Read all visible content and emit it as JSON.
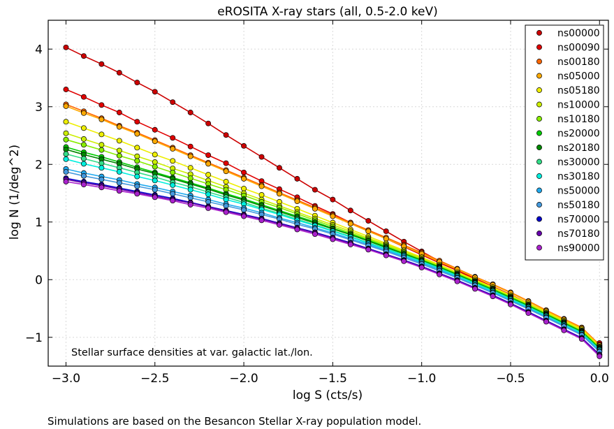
{
  "chart_data": {
    "type": "line",
    "title": "eROSITA X-ray stars (all, 0.5-2.0 keV)",
    "xlabel": "log S (cts/s)",
    "ylabel": "log N (1/deg^2)",
    "xlim": [
      -3.1,
      0.05
    ],
    "ylim": [
      -1.5,
      4.5
    ],
    "xticks": [
      -3.0,
      -2.5,
      -2.0,
      -1.5,
      -1.0,
      -0.5,
      0.0
    ],
    "xtick_labels": [
      "−3.0",
      "−2.5",
      "−2.0",
      "−1.5",
      "−1.0",
      "−0.5",
      "0.0"
    ],
    "yticks": [
      -1,
      0,
      1,
      2,
      3,
      4
    ],
    "ytick_labels": [
      "−1",
      "0",
      "1",
      "2",
      "3",
      "4"
    ],
    "grid": true,
    "legend_position": "top-right",
    "annotation": "Stellar surface densities at var. galactic lat./lon.",
    "x": [
      -3.0,
      -2.9,
      -2.8,
      -2.7,
      -2.6,
      -2.5,
      -2.4,
      -2.3,
      -2.2,
      -2.1,
      -2.0,
      -1.9,
      -1.8,
      -1.7,
      -1.6,
      -1.5,
      -1.4,
      -1.3,
      -1.2,
      -1.1,
      -1.0,
      -0.9,
      -0.8,
      -0.7,
      -0.6,
      -0.5,
      -0.4,
      -0.3,
      -0.2,
      -0.1,
      0.0
    ],
    "series": [
      {
        "name": "ns00000",
        "color": "#cc0000",
        "values": [
          4.03,
          3.88,
          3.74,
          3.59,
          3.42,
          3.26,
          3.08,
          2.9,
          2.71,
          2.51,
          2.32,
          2.13,
          1.94,
          1.75,
          1.56,
          1.39,
          1.2,
          1.02,
          0.84,
          0.66,
          0.49,
          0.32,
          0.16,
          0.0,
          -0.17,
          -0.34,
          -0.49,
          -0.64,
          -0.8,
          -0.96,
          -1.1
        ]
      },
      {
        "name": "ns00090",
        "color": "#e00000",
        "values": [
          3.3,
          3.17,
          3.03,
          2.9,
          2.74,
          2.6,
          2.46,
          2.31,
          2.16,
          2.02,
          1.86,
          1.71,
          1.57,
          1.43,
          1.28,
          1.14,
          0.99,
          0.85,
          0.71,
          0.57,
          0.43,
          0.29,
          0.16,
          0.02,
          -0.12,
          -0.26,
          -0.41,
          -0.56,
          -0.71,
          -0.85,
          -1.15
        ]
      },
      {
        "name": "ns00180",
        "color": "#ff6600",
        "values": [
          3.04,
          2.92,
          2.8,
          2.67,
          2.55,
          2.42,
          2.29,
          2.16,
          2.03,
          1.9,
          1.77,
          1.64,
          1.51,
          1.38,
          1.25,
          1.12,
          0.99,
          0.86,
          0.73,
          0.6,
          0.47,
          0.33,
          0.19,
          0.05,
          -0.08,
          -0.22,
          -0.37,
          -0.53,
          -0.68,
          -0.83,
          -1.13
        ]
      },
      {
        "name": "ns05000",
        "color": "#ffaa00",
        "values": [
          3.01,
          2.89,
          2.78,
          2.65,
          2.53,
          2.4,
          2.27,
          2.14,
          2.01,
          1.88,
          1.75,
          1.62,
          1.49,
          1.36,
          1.23,
          1.1,
          0.97,
          0.84,
          0.71,
          0.58,
          0.45,
          0.31,
          0.18,
          0.04,
          -0.09,
          -0.23,
          -0.38,
          -0.54,
          -0.69,
          -0.84,
          -1.14
        ]
      },
      {
        "name": "ns05180",
        "color": "#eeee00",
        "values": [
          2.74,
          2.63,
          2.52,
          2.41,
          2.29,
          2.17,
          2.06,
          1.94,
          1.82,
          1.7,
          1.58,
          1.47,
          1.35,
          1.23,
          1.11,
          0.99,
          0.87,
          0.75,
          0.63,
          0.51,
          0.39,
          0.26,
          0.13,
          0.0,
          -0.13,
          -0.27,
          -0.41,
          -0.56,
          -0.71,
          -0.86,
          -1.16
        ]
      },
      {
        "name": "ns10000",
        "color": "#ccee00",
        "values": [
          2.54,
          2.44,
          2.34,
          2.24,
          2.14,
          2.04,
          1.93,
          1.83,
          1.72,
          1.61,
          1.5,
          1.39,
          1.28,
          1.17,
          1.06,
          0.95,
          0.84,
          0.72,
          0.61,
          0.49,
          0.37,
          0.24,
          0.11,
          -0.02,
          -0.15,
          -0.29,
          -0.43,
          -0.58,
          -0.73,
          -0.88,
          -1.17
        ]
      },
      {
        "name": "ns10180",
        "color": "#88ee00",
        "values": [
          2.43,
          2.34,
          2.25,
          2.15,
          2.06,
          1.96,
          1.86,
          1.76,
          1.66,
          1.56,
          1.46,
          1.35,
          1.25,
          1.14,
          1.03,
          0.92,
          0.81,
          0.7,
          0.59,
          0.47,
          0.35,
          0.23,
          0.1,
          -0.03,
          -0.16,
          -0.3,
          -0.44,
          -0.59,
          -0.74,
          -0.89,
          -1.18
        ]
      },
      {
        "name": "ns20000",
        "color": "#00cc00",
        "values": [
          2.3,
          2.21,
          2.13,
          2.04,
          1.95,
          1.86,
          1.77,
          1.68,
          1.59,
          1.49,
          1.4,
          1.3,
          1.2,
          1.1,
          1.0,
          0.89,
          0.79,
          0.68,
          0.57,
          0.45,
          0.34,
          0.22,
          0.09,
          -0.04,
          -0.17,
          -0.31,
          -0.45,
          -0.6,
          -0.75,
          -0.9,
          -1.19
        ]
      },
      {
        "name": "ns20180",
        "color": "#008800",
        "values": [
          2.26,
          2.17,
          2.09,
          2.01,
          1.92,
          1.84,
          1.75,
          1.66,
          1.57,
          1.47,
          1.38,
          1.28,
          1.18,
          1.08,
          0.98,
          0.88,
          0.78,
          0.67,
          0.56,
          0.45,
          0.33,
          0.21,
          0.08,
          -0.05,
          -0.18,
          -0.32,
          -0.46,
          -0.61,
          -0.76,
          -0.91,
          -1.2
        ]
      },
      {
        "name": "ns30000",
        "color": "#33dd88",
        "values": [
          2.18,
          2.1,
          2.02,
          1.94,
          1.86,
          1.78,
          1.69,
          1.61,
          1.52,
          1.43,
          1.34,
          1.24,
          1.15,
          1.05,
          0.95,
          0.85,
          0.75,
          0.64,
          0.54,
          0.43,
          0.32,
          0.2,
          0.07,
          -0.06,
          -0.19,
          -0.33,
          -0.47,
          -0.62,
          -0.77,
          -0.92,
          -1.21
        ]
      },
      {
        "name": "ns30180",
        "color": "#00eedd",
        "values": [
          2.09,
          2.01,
          1.94,
          1.87,
          1.79,
          1.72,
          1.64,
          1.56,
          1.48,
          1.39,
          1.31,
          1.22,
          1.13,
          1.03,
          0.94,
          0.84,
          0.74,
          0.63,
          0.53,
          0.42,
          0.31,
          0.19,
          0.06,
          -0.07,
          -0.2,
          -0.34,
          -0.48,
          -0.63,
          -0.78,
          -0.93,
          -1.22
        ]
      },
      {
        "name": "ns50000",
        "color": "#22aaee",
        "values": [
          1.92,
          1.85,
          1.79,
          1.73,
          1.66,
          1.6,
          1.53,
          1.46,
          1.39,
          1.31,
          1.24,
          1.16,
          1.07,
          0.99,
          0.9,
          0.81,
          0.71,
          0.61,
          0.51,
          0.4,
          0.29,
          0.17,
          0.04,
          -0.09,
          -0.22,
          -0.36,
          -0.5,
          -0.65,
          -0.8,
          -0.95,
          -1.24
        ]
      },
      {
        "name": "ns50180",
        "color": "#4499dd",
        "values": [
          1.87,
          1.8,
          1.74,
          1.68,
          1.62,
          1.56,
          1.49,
          1.42,
          1.35,
          1.28,
          1.21,
          1.13,
          1.05,
          0.96,
          0.88,
          0.79,
          0.69,
          0.59,
          0.49,
          0.38,
          0.27,
          0.15,
          0.03,
          -0.1,
          -0.23,
          -0.37,
          -0.51,
          -0.66,
          -0.81,
          -0.96,
          -1.25
        ]
      },
      {
        "name": "ns70000",
        "color": "#0000cc",
        "values": [
          1.76,
          1.7,
          1.65,
          1.59,
          1.53,
          1.47,
          1.41,
          1.34,
          1.27,
          1.2,
          1.13,
          1.06,
          0.98,
          0.9,
          0.82,
          0.73,
          0.64,
          0.54,
          0.44,
          0.34,
          0.23,
          0.11,
          -0.01,
          -0.14,
          -0.27,
          -0.41,
          -0.56,
          -0.71,
          -0.86,
          -1.01,
          -1.3
        ]
      },
      {
        "name": "ns70180",
        "color": "#6600aa",
        "values": [
          1.74,
          1.68,
          1.63,
          1.57,
          1.51,
          1.45,
          1.39,
          1.33,
          1.26,
          1.19,
          1.12,
          1.05,
          0.97,
          0.89,
          0.81,
          0.72,
          0.63,
          0.53,
          0.43,
          0.33,
          0.22,
          0.1,
          -0.02,
          -0.15,
          -0.28,
          -0.42,
          -0.57,
          -0.72,
          -0.87,
          -1.02,
          -1.31
        ]
      },
      {
        "name": "ns90000",
        "color": "#aa22cc",
        "values": [
          1.7,
          1.65,
          1.6,
          1.54,
          1.49,
          1.43,
          1.37,
          1.3,
          1.24,
          1.17,
          1.1,
          1.03,
          0.95,
          0.87,
          0.79,
          0.7,
          0.61,
          0.52,
          0.42,
          0.32,
          0.21,
          0.09,
          -0.03,
          -0.16,
          -0.29,
          -0.43,
          -0.58,
          -0.73,
          -0.88,
          -1.03,
          -1.33
        ]
      }
    ]
  },
  "caption": "Simulations are based on the Besancon Stellar X-ray population model."
}
